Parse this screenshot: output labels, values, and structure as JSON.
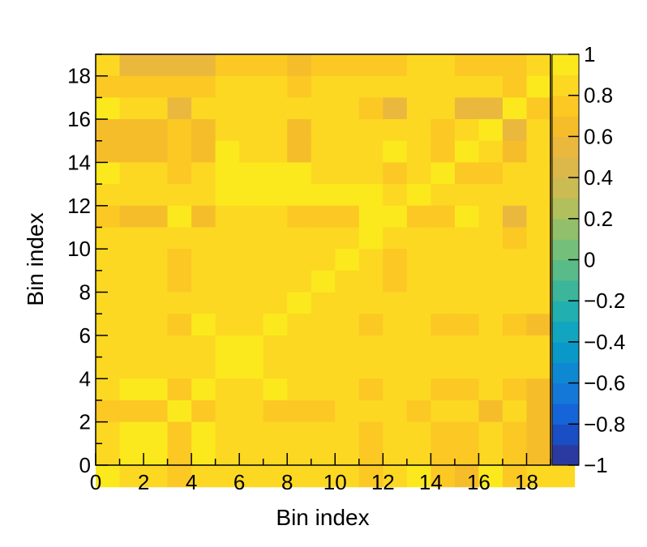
{
  "chart_data": {
    "type": "heatmap",
    "title": "",
    "xlabel": "Bin index",
    "ylabel": "Bin index",
    "xlim": [
      0,
      19
    ],
    "ylim": [
      0,
      19
    ],
    "x_ticks": [
      "0",
      "2",
      "4",
      "6",
      "8",
      "10",
      "12",
      "14",
      "16",
      "18"
    ],
    "y_ticks": [
      "0",
      "2",
      "4",
      "6",
      "8",
      "10",
      "12",
      "14",
      "16",
      "18"
    ],
    "colorbar": {
      "range": [
        -1,
        1
      ],
      "ticks": [
        "1",
        "0.8",
        "0.6",
        "0.4",
        "0.2",
        "0",
        "−0.2",
        "−0.4",
        "−0.6",
        "−0.8",
        "−1"
      ],
      "colors": [
        "#2b3aa0",
        "#1a4ec4",
        "#1565d8",
        "#1478d8",
        "#0f88d2",
        "#0a98c9",
        "#11a5c0",
        "#21afaf",
        "#3cb59a",
        "#58bb88",
        "#74bf7a",
        "#92c06a",
        "#b1bf5c",
        "#cabb52",
        "#dcb74a",
        "#ebb83e",
        "#f6bd2a",
        "#fcc824",
        "#fcd822",
        "#fbe91d"
      ]
    },
    "grid": false,
    "rows_top_to_bottom": [
      [
        0.8,
        0.5,
        0.55,
        0.55,
        0.55,
        0.7,
        0.7,
        0.7,
        0.6,
        0.7,
        0.7,
        0.7,
        0.7,
        0.8,
        0.8,
        0.7,
        0.7,
        0.7,
        0.85,
        1.0
      ],
      [
        0.7,
        0.7,
        0.7,
        0.7,
        0.7,
        0.8,
        0.8,
        0.8,
        0.7,
        0.8,
        0.8,
        0.8,
        0.8,
        0.8,
        0.8,
        0.8,
        0.8,
        0.7,
        1.0,
        0.8
      ],
      [
        0.9,
        0.8,
        0.8,
        0.55,
        0.8,
        0.8,
        0.8,
        0.8,
        0.8,
        0.8,
        0.8,
        0.7,
        0.55,
        0.8,
        0.8,
        0.55,
        0.55,
        1.0,
        0.7,
        0.7
      ],
      [
        0.6,
        0.65,
        0.65,
        0.75,
        0.65,
        0.8,
        0.8,
        0.8,
        0.65,
        0.8,
        0.8,
        0.8,
        0.8,
        0.8,
        0.7,
        0.8,
        1.0,
        0.55,
        0.8,
        0.7
      ],
      [
        0.65,
        0.65,
        0.65,
        0.75,
        0.65,
        0.9,
        0.8,
        0.8,
        0.65,
        0.8,
        0.8,
        0.8,
        0.9,
        0.8,
        0.7,
        1.0,
        0.8,
        0.6,
        0.8,
        0.7
      ],
      [
        0.9,
        0.8,
        0.8,
        0.7,
        0.8,
        0.9,
        0.9,
        0.9,
        0.9,
        0.8,
        0.8,
        0.8,
        0.7,
        0.8,
        1.0,
        0.7,
        0.7,
        0.8,
        0.8,
        0.8
      ],
      [
        0.8,
        0.8,
        0.8,
        0.8,
        0.8,
        0.9,
        0.9,
        0.9,
        0.9,
        0.9,
        0.9,
        0.9,
        0.8,
        1.0,
        0.8,
        0.8,
        0.8,
        0.8,
        0.8,
        0.8
      ],
      [
        0.7,
        0.65,
        0.65,
        0.9,
        0.65,
        0.85,
        0.85,
        0.85,
        0.7,
        0.75,
        0.75,
        0.9,
        1.0,
        0.75,
        0.7,
        0.9,
        0.8,
        0.55,
        0.8,
        0.7
      ],
      [
        0.8,
        0.85,
        0.85,
        0.85,
        0.85,
        0.85,
        0.85,
        0.85,
        0.85,
        0.85,
        0.85,
        1.0,
        0.85,
        0.85,
        0.8,
        0.8,
        0.8,
        0.7,
        0.8,
        0.7
      ],
      [
        0.8,
        0.85,
        0.85,
        0.75,
        0.85,
        0.85,
        0.85,
        0.85,
        0.85,
        0.85,
        1.0,
        0.85,
        0.75,
        0.85,
        0.8,
        0.8,
        0.8,
        0.8,
        0.8,
        0.7
      ],
      [
        0.8,
        0.85,
        0.85,
        0.75,
        0.85,
        0.85,
        0.85,
        0.85,
        0.85,
        1.0,
        0.85,
        0.85,
        0.75,
        0.85,
        0.8,
        0.8,
        0.8,
        0.8,
        0.8,
        0.7
      ],
      [
        0.85,
        0.85,
        0.85,
        0.85,
        0.85,
        0.85,
        0.85,
        0.85,
        1.0,
        0.85,
        0.85,
        0.85,
        0.85,
        0.85,
        0.85,
        0.8,
        0.8,
        0.8,
        0.8,
        0.7
      ],
      [
        0.85,
        0.85,
        0.85,
        0.75,
        0.95,
        0.85,
        0.85,
        0.95,
        0.85,
        0.85,
        0.85,
        0.7,
        0.85,
        0.85,
        0.7,
        0.7,
        0.8,
        0.7,
        0.65,
        0.6
      ],
      [
        0.85,
        0.85,
        0.85,
        0.85,
        0.85,
        0.97,
        0.97,
        0.85,
        0.85,
        0.85,
        0.85,
        0.85,
        0.85,
        0.85,
        0.85,
        0.8,
        0.8,
        0.8,
        0.8,
        0.7
      ],
      [
        0.85,
        0.85,
        0.85,
        0.85,
        0.85,
        0.97,
        0.97,
        0.85,
        0.85,
        0.85,
        0.85,
        0.85,
        0.85,
        0.85,
        0.85,
        0.85,
        0.8,
        0.8,
        0.8,
        0.7
      ],
      [
        0.85,
        0.97,
        0.97,
        0.75,
        0.97,
        0.85,
        0.85,
        0.97,
        0.85,
        0.85,
        0.85,
        0.7,
        0.8,
        0.8,
        0.7,
        0.7,
        0.8,
        0.7,
        0.65,
        0.6
      ],
      [
        0.7,
        0.75,
        0.75,
        0.97,
        0.75,
        0.85,
        0.85,
        0.75,
        0.75,
        0.75,
        0.85,
        0.85,
        0.8,
        0.7,
        0.8,
        0.8,
        0.6,
        0.8,
        0.65,
        0.6
      ],
      [
        0.85,
        0.97,
        0.97,
        0.75,
        0.97,
        0.85,
        0.85,
        0.85,
        0.85,
        0.85,
        0.85,
        0.7,
        0.8,
        0.8,
        0.7,
        0.7,
        0.8,
        0.7,
        0.65,
        0.6
      ],
      [
        0.85,
        0.97,
        0.97,
        0.75,
        0.97,
        0.85,
        0.85,
        0.85,
        0.85,
        0.85,
        0.85,
        0.7,
        0.8,
        0.8,
        0.7,
        0.7,
        0.8,
        0.7,
        0.65,
        0.5
      ],
      [
        0.95,
        0.85,
        0.85,
        0.7,
        0.85,
        0.85,
        0.85,
        0.85,
        0.85,
        0.8,
        0.8,
        0.7,
        0.8,
        0.9,
        0.7,
        0.65,
        0.9,
        0.7,
        0.85,
        0.85
      ]
    ]
  }
}
